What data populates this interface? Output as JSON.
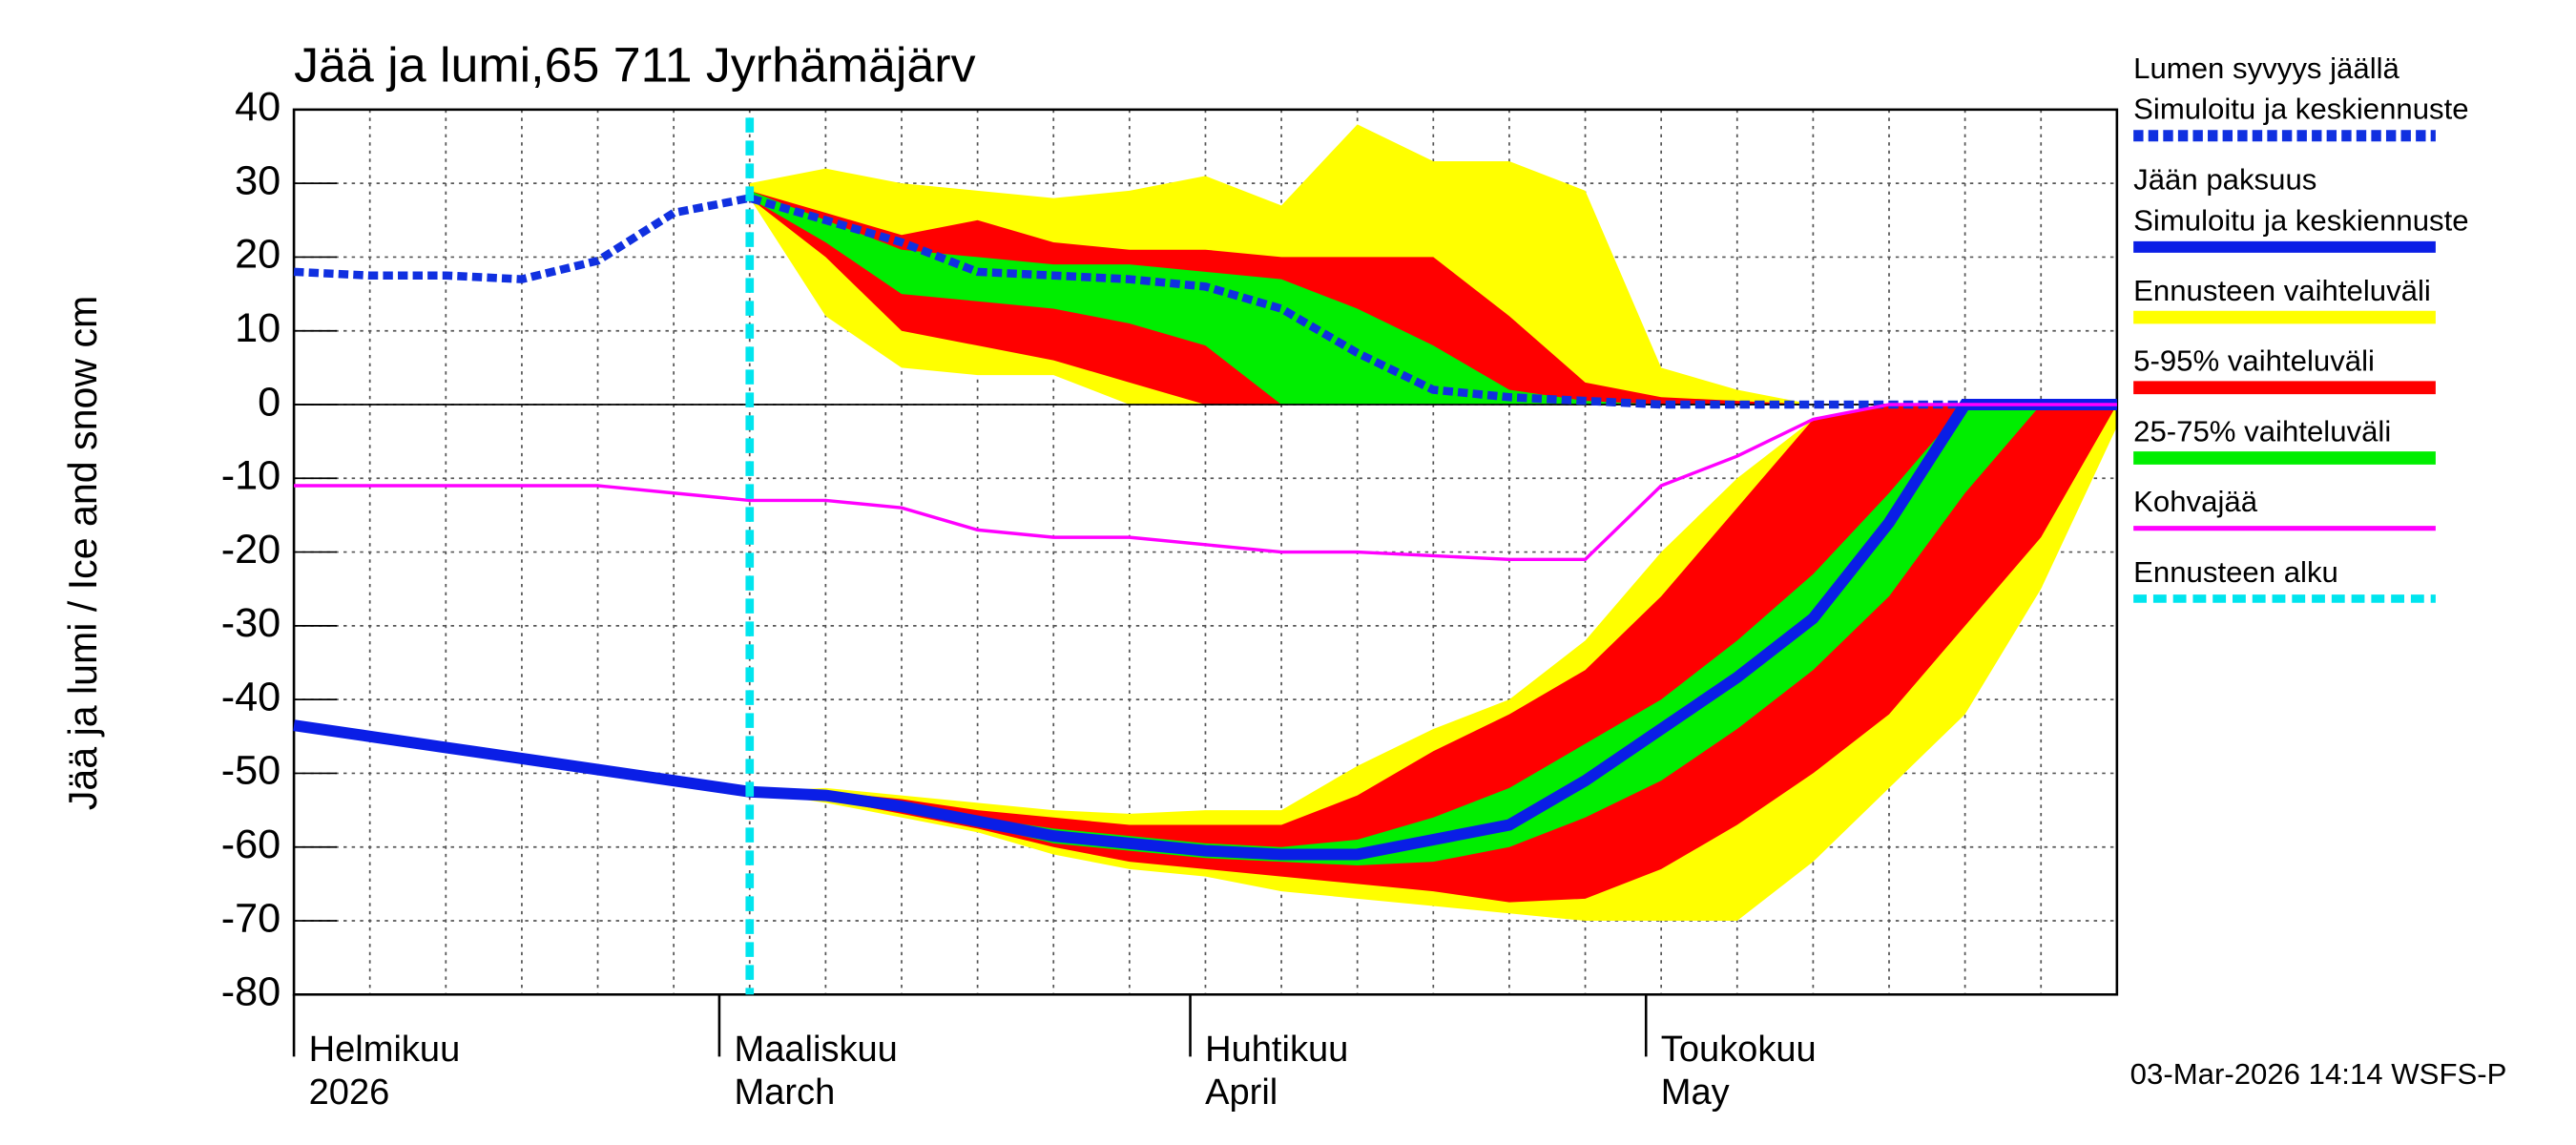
{
  "chart_data": {
    "type": "band-line",
    "title": "Jää ja lumi,65 711 Jyrhämäjärv",
    "ylabel": "Jää ja lumi / Ice and snow    cm",
    "footer": "03-Mar-2026 14:14 WSFS-P",
    "x": [
      "2026-02-01",
      "2026-02-06",
      "2026-02-11",
      "2026-02-16",
      "2026-02-21",
      "2026-02-26",
      "2026-03-03",
      "2026-03-08",
      "2026-03-13",
      "2026-03-18",
      "2026-03-23",
      "2026-03-28",
      "2026-04-02",
      "2026-04-07",
      "2026-04-12",
      "2026-04-17",
      "2026-04-22",
      "2026-04-27",
      "2026-05-02",
      "2026-05-07",
      "2026-05-12",
      "2026-05-17",
      "2026-05-22",
      "2026-05-27",
      "2026-06-01"
    ],
    "xlim": [
      "2026-02-01",
      "2026-06-01"
    ],
    "xticks": [
      {
        "value": "2026-02-01",
        "label": [
          "Helmikuu",
          "2026"
        ]
      },
      {
        "value": "2026-03-01",
        "label": [
          "Maaliskuu",
          "March"
        ]
      },
      {
        "value": "2026-04-01",
        "label": [
          "Huhtikuu",
          "April"
        ]
      },
      {
        "value": "2026-05-01",
        "label": [
          "Toukokuu",
          "May"
        ]
      }
    ],
    "ylim": [
      -80,
      40
    ],
    "yticks": [
      -80,
      -70,
      -60,
      -50,
      -40,
      -30,
      -20,
      -10,
      0,
      10,
      20,
      30,
      40
    ],
    "grid": true,
    "legend": "right",
    "bands": [
      {
        "name": [
          "Ennusteen vaihteluväli"
        ],
        "color": "#ffff00",
        "snow_upper": [
          null,
          null,
          null,
          null,
          null,
          null,
          30,
          32,
          30,
          29,
          28,
          29,
          31,
          27,
          38,
          33,
          33,
          29,
          5,
          2,
          0,
          0,
          0,
          0,
          0
        ],
        "snow_lower": [
          null,
          null,
          null,
          null,
          null,
          null,
          28,
          12,
          5,
          4,
          4,
          0,
          0,
          0,
          0,
          0,
          0,
          0,
          0,
          0,
          0,
          0,
          0,
          0,
          0
        ],
        "ice_upper": [
          null,
          null,
          null,
          null,
          null,
          null,
          -52.5,
          -52,
          -53,
          -54,
          -55,
          -55.5,
          -55,
          -55,
          -49,
          -44,
          -40,
          -32,
          -20,
          -10,
          -2,
          0,
          0,
          0,
          0
        ],
        "ice_lower": [
          null,
          null,
          null,
          null,
          null,
          null,
          -52.5,
          -54,
          -56,
          -58,
          -61,
          -63,
          -64,
          -66,
          -67,
          -68,
          -69,
          -70,
          -70,
          -70,
          -62,
          -52,
          -42,
          -25,
          -3
        ]
      },
      {
        "name": [
          "5-95% vaihteluväli"
        ],
        "color": "#ff0000",
        "snow_upper": [
          null,
          null,
          null,
          null,
          null,
          null,
          29,
          26,
          23,
          25,
          22,
          21,
          21,
          20,
          20,
          20,
          12,
          3,
          1,
          0.5,
          0,
          0,
          0,
          0,
          0
        ],
        "snow_lower": [
          null,
          null,
          null,
          null,
          null,
          null,
          28,
          20,
          10,
          8,
          6,
          3,
          0,
          0,
          0,
          0,
          0,
          0,
          0,
          0,
          0,
          0,
          0,
          0,
          0
        ],
        "ice_upper": [
          null,
          null,
          null,
          null,
          null,
          null,
          -52.5,
          -52.5,
          -53.5,
          -55,
          -56,
          -57,
          -57,
          -57,
          -53,
          -47,
          -42,
          -36,
          -26,
          -14,
          -2,
          0,
          0,
          0,
          0
        ],
        "ice_lower": [
          null,
          null,
          null,
          null,
          null,
          null,
          -52.5,
          -53.5,
          -55.5,
          -57.5,
          -60,
          -62,
          -63,
          -64,
          -65,
          -66,
          -67.5,
          -67,
          -63,
          -57,
          -50,
          -42,
          -30,
          -18,
          0
        ]
      },
      {
        "name": [
          "25-75% vaihteluväli"
        ],
        "color": "#00ee00",
        "snow_upper": [
          null,
          null,
          null,
          null,
          null,
          null,
          29,
          25,
          21,
          20,
          19,
          19,
          18,
          17,
          13,
          8,
          2,
          0.5,
          0,
          0,
          0,
          0,
          0,
          0,
          0
        ],
        "snow_lower": [
          null,
          null,
          null,
          null,
          null,
          null,
          28,
          22,
          15,
          14,
          13,
          11,
          8,
          0,
          0,
          0,
          0,
          0,
          0,
          0,
          0,
          0,
          0,
          0,
          0
        ],
        "ice_upper": [
          null,
          null,
          null,
          null,
          null,
          null,
          -52.5,
          -53,
          -54,
          -56,
          -57.5,
          -58.5,
          -59.5,
          -60,
          -59,
          -56,
          -52,
          -46,
          -40,
          -32,
          -23,
          -12,
          0,
          0,
          0
        ],
        "ice_lower": [
          null,
          null,
          null,
          null,
          null,
          null,
          -52.5,
          -53.5,
          -55,
          -57,
          -59.5,
          -60.5,
          -61.5,
          -62,
          -62.5,
          -62,
          -60,
          -56,
          -51,
          -44,
          -36,
          -26,
          -12,
          0,
          0
        ]
      }
    ],
    "series": [
      {
        "name": [
          "Lumen syvyys jäällä",
          "Simuloitu ja keskiennuste"
        ],
        "color": "#1030e0",
        "dashed": true,
        "width": 5,
        "values": [
          18,
          17.5,
          17.5,
          17,
          19.5,
          26,
          28,
          25,
          22,
          18,
          17.5,
          17,
          16,
          13,
          7,
          2,
          1,
          0.5,
          0,
          0,
          0,
          0,
          0,
          0,
          0
        ]
      },
      {
        "name": [
          "Jään paksuus",
          "Simuloitu ja keskiennuste"
        ],
        "color": "#0a1ee6",
        "dashed": false,
        "width": 7,
        "values": [
          -43.5,
          -45,
          -46.5,
          -48,
          -49.5,
          -51,
          -52.5,
          -53,
          -54.5,
          -56.5,
          -58.5,
          -59.5,
          -60.5,
          -61,
          -61,
          -59,
          -57,
          -51,
          -44,
          -37,
          -29,
          -16,
          0,
          0,
          0
        ]
      },
      {
        "name": [
          "Kohvajää"
        ],
        "color": "#ff00ff",
        "dashed": false,
        "width": 2,
        "values": [
          -11,
          -11,
          -11,
          -11,
          -11,
          -12,
          -13,
          -13,
          -14,
          -17,
          -18,
          -18,
          -19,
          -20,
          -20,
          -20.5,
          -21,
          -21,
          -11,
          -7,
          -2,
          0,
          0,
          0,
          0
        ]
      }
    ],
    "forecast_start": {
      "name": [
        "Ennusteen alku"
      ],
      "x": "2026-03-03",
      "color": "#00e5ee"
    }
  }
}
